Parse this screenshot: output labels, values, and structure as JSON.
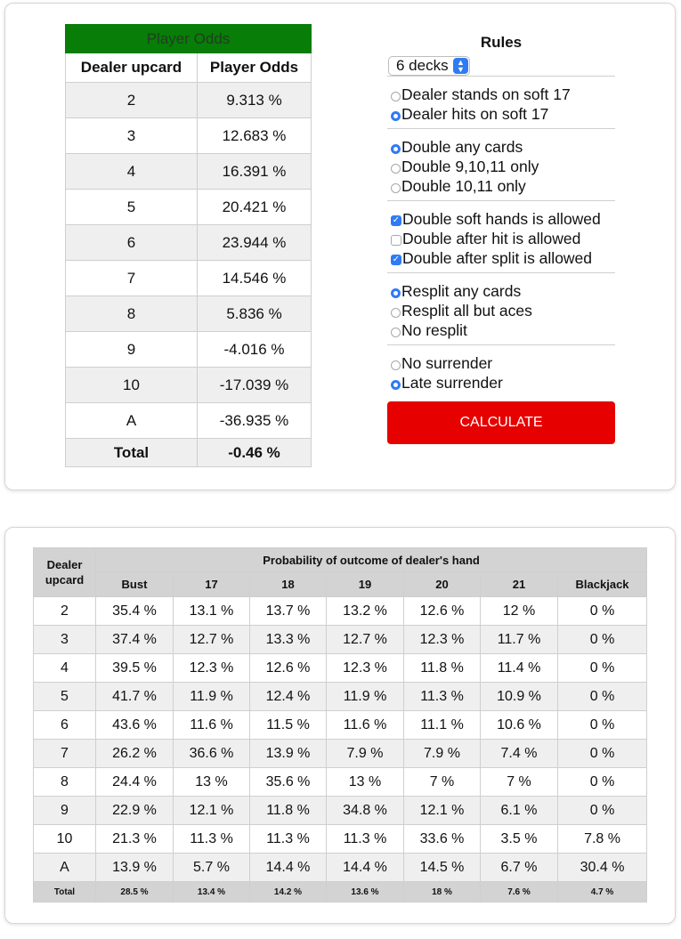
{
  "player_odds": {
    "caption": "Player Odds",
    "headers": [
      "Dealer upcard",
      "Player Odds"
    ],
    "rows": [
      {
        "upcard": "2",
        "odds": "9.313 %"
      },
      {
        "upcard": "3",
        "odds": "12.683 %"
      },
      {
        "upcard": "4",
        "odds": "16.391 %"
      },
      {
        "upcard": "5",
        "odds": "20.421 %"
      },
      {
        "upcard": "6",
        "odds": "23.944 %"
      },
      {
        "upcard": "7",
        "odds": "14.546 %"
      },
      {
        "upcard": "8",
        "odds": "5.836 %"
      },
      {
        "upcard": "9",
        "odds": "-4.016 %"
      },
      {
        "upcard": "10",
        "odds": "-17.039 %"
      },
      {
        "upcard": "A",
        "odds": "-36.935 %"
      }
    ],
    "total_label": "Total",
    "total_value": "-0.46 %"
  },
  "rules": {
    "title": "Rules",
    "decks_selected": "6 decks",
    "soft17": [
      {
        "label": "Dealer stands on soft 17",
        "checked": false
      },
      {
        "label": "Dealer hits on soft 17",
        "checked": true
      }
    ],
    "double": [
      {
        "label": "Double any cards",
        "checked": true
      },
      {
        "label": "Double 9,10,11 only",
        "checked": false
      },
      {
        "label": "Double 10,11 only",
        "checked": false
      }
    ],
    "double_options": [
      {
        "label": "Double soft hands is allowed",
        "checked": true
      },
      {
        "label": "Double after hit is allowed",
        "checked": false
      },
      {
        "label": "Double after split is allowed",
        "checked": true
      }
    ],
    "resplit": [
      {
        "label": "Resplit any cards",
        "checked": true
      },
      {
        "label": "Resplit all but aces",
        "checked": false
      },
      {
        "label": "No resplit",
        "checked": false
      }
    ],
    "surrender": [
      {
        "label": "No surrender",
        "checked": false
      },
      {
        "label": "Late surrender",
        "checked": true
      }
    ],
    "calculate_label": "CALCULATE"
  },
  "outcome": {
    "corner_header": "Dealer upcard",
    "group_header": "Probability of outcome of dealer's hand",
    "columns": [
      "Bust",
      "17",
      "18",
      "19",
      "20",
      "21",
      "Blackjack"
    ],
    "rows": [
      {
        "upcard": "2",
        "values": [
          "35.4 %",
          "13.1 %",
          "13.7 %",
          "13.2 %",
          "12.6 %",
          "12 %",
          "0 %"
        ]
      },
      {
        "upcard": "3",
        "values": [
          "37.4 %",
          "12.7 %",
          "13.3 %",
          "12.7 %",
          "12.3 %",
          "11.7 %",
          "0 %"
        ]
      },
      {
        "upcard": "4",
        "values": [
          "39.5 %",
          "12.3 %",
          "12.6 %",
          "12.3 %",
          "11.8 %",
          "11.4 %",
          "0 %"
        ]
      },
      {
        "upcard": "5",
        "values": [
          "41.7 %",
          "11.9 %",
          "12.4 %",
          "11.9 %",
          "11.3 %",
          "10.9 %",
          "0 %"
        ]
      },
      {
        "upcard": "6",
        "values": [
          "43.6 %",
          "11.6 %",
          "11.5 %",
          "11.6 %",
          "11.1 %",
          "10.6 %",
          "0 %"
        ]
      },
      {
        "upcard": "7",
        "values": [
          "26.2 %",
          "36.6 %",
          "13.9 %",
          "7.9 %",
          "7.9 %",
          "7.4 %",
          "0 %"
        ]
      },
      {
        "upcard": "8",
        "values": [
          "24.4 %",
          "13 %",
          "35.6 %",
          "13 %",
          "7 %",
          "7 %",
          "0 %"
        ]
      },
      {
        "upcard": "9",
        "values": [
          "22.9 %",
          "12.1 %",
          "11.8 %",
          "34.8 %",
          "12.1 %",
          "6.1 %",
          "0 %"
        ]
      },
      {
        "upcard": "10",
        "values": [
          "21.3 %",
          "11.3 %",
          "11.3 %",
          "11.3 %",
          "33.6 %",
          "3.5 %",
          "7.8 %"
        ]
      },
      {
        "upcard": "A",
        "values": [
          "13.9 %",
          "5.7 %",
          "14.4 %",
          "14.4 %",
          "14.5 %",
          "6.7 %",
          "30.4 %"
        ]
      }
    ],
    "total_label": "Total",
    "totals": [
      "28.5 %",
      "13.4 %",
      "14.2 %",
      "13.6 %",
      "18 %",
      "7.6 %",
      "4.7 %"
    ]
  },
  "colors": {
    "caption_green": "#087d08",
    "accent_blue": "#2f7bf5",
    "calculate_red": "#e60000"
  }
}
